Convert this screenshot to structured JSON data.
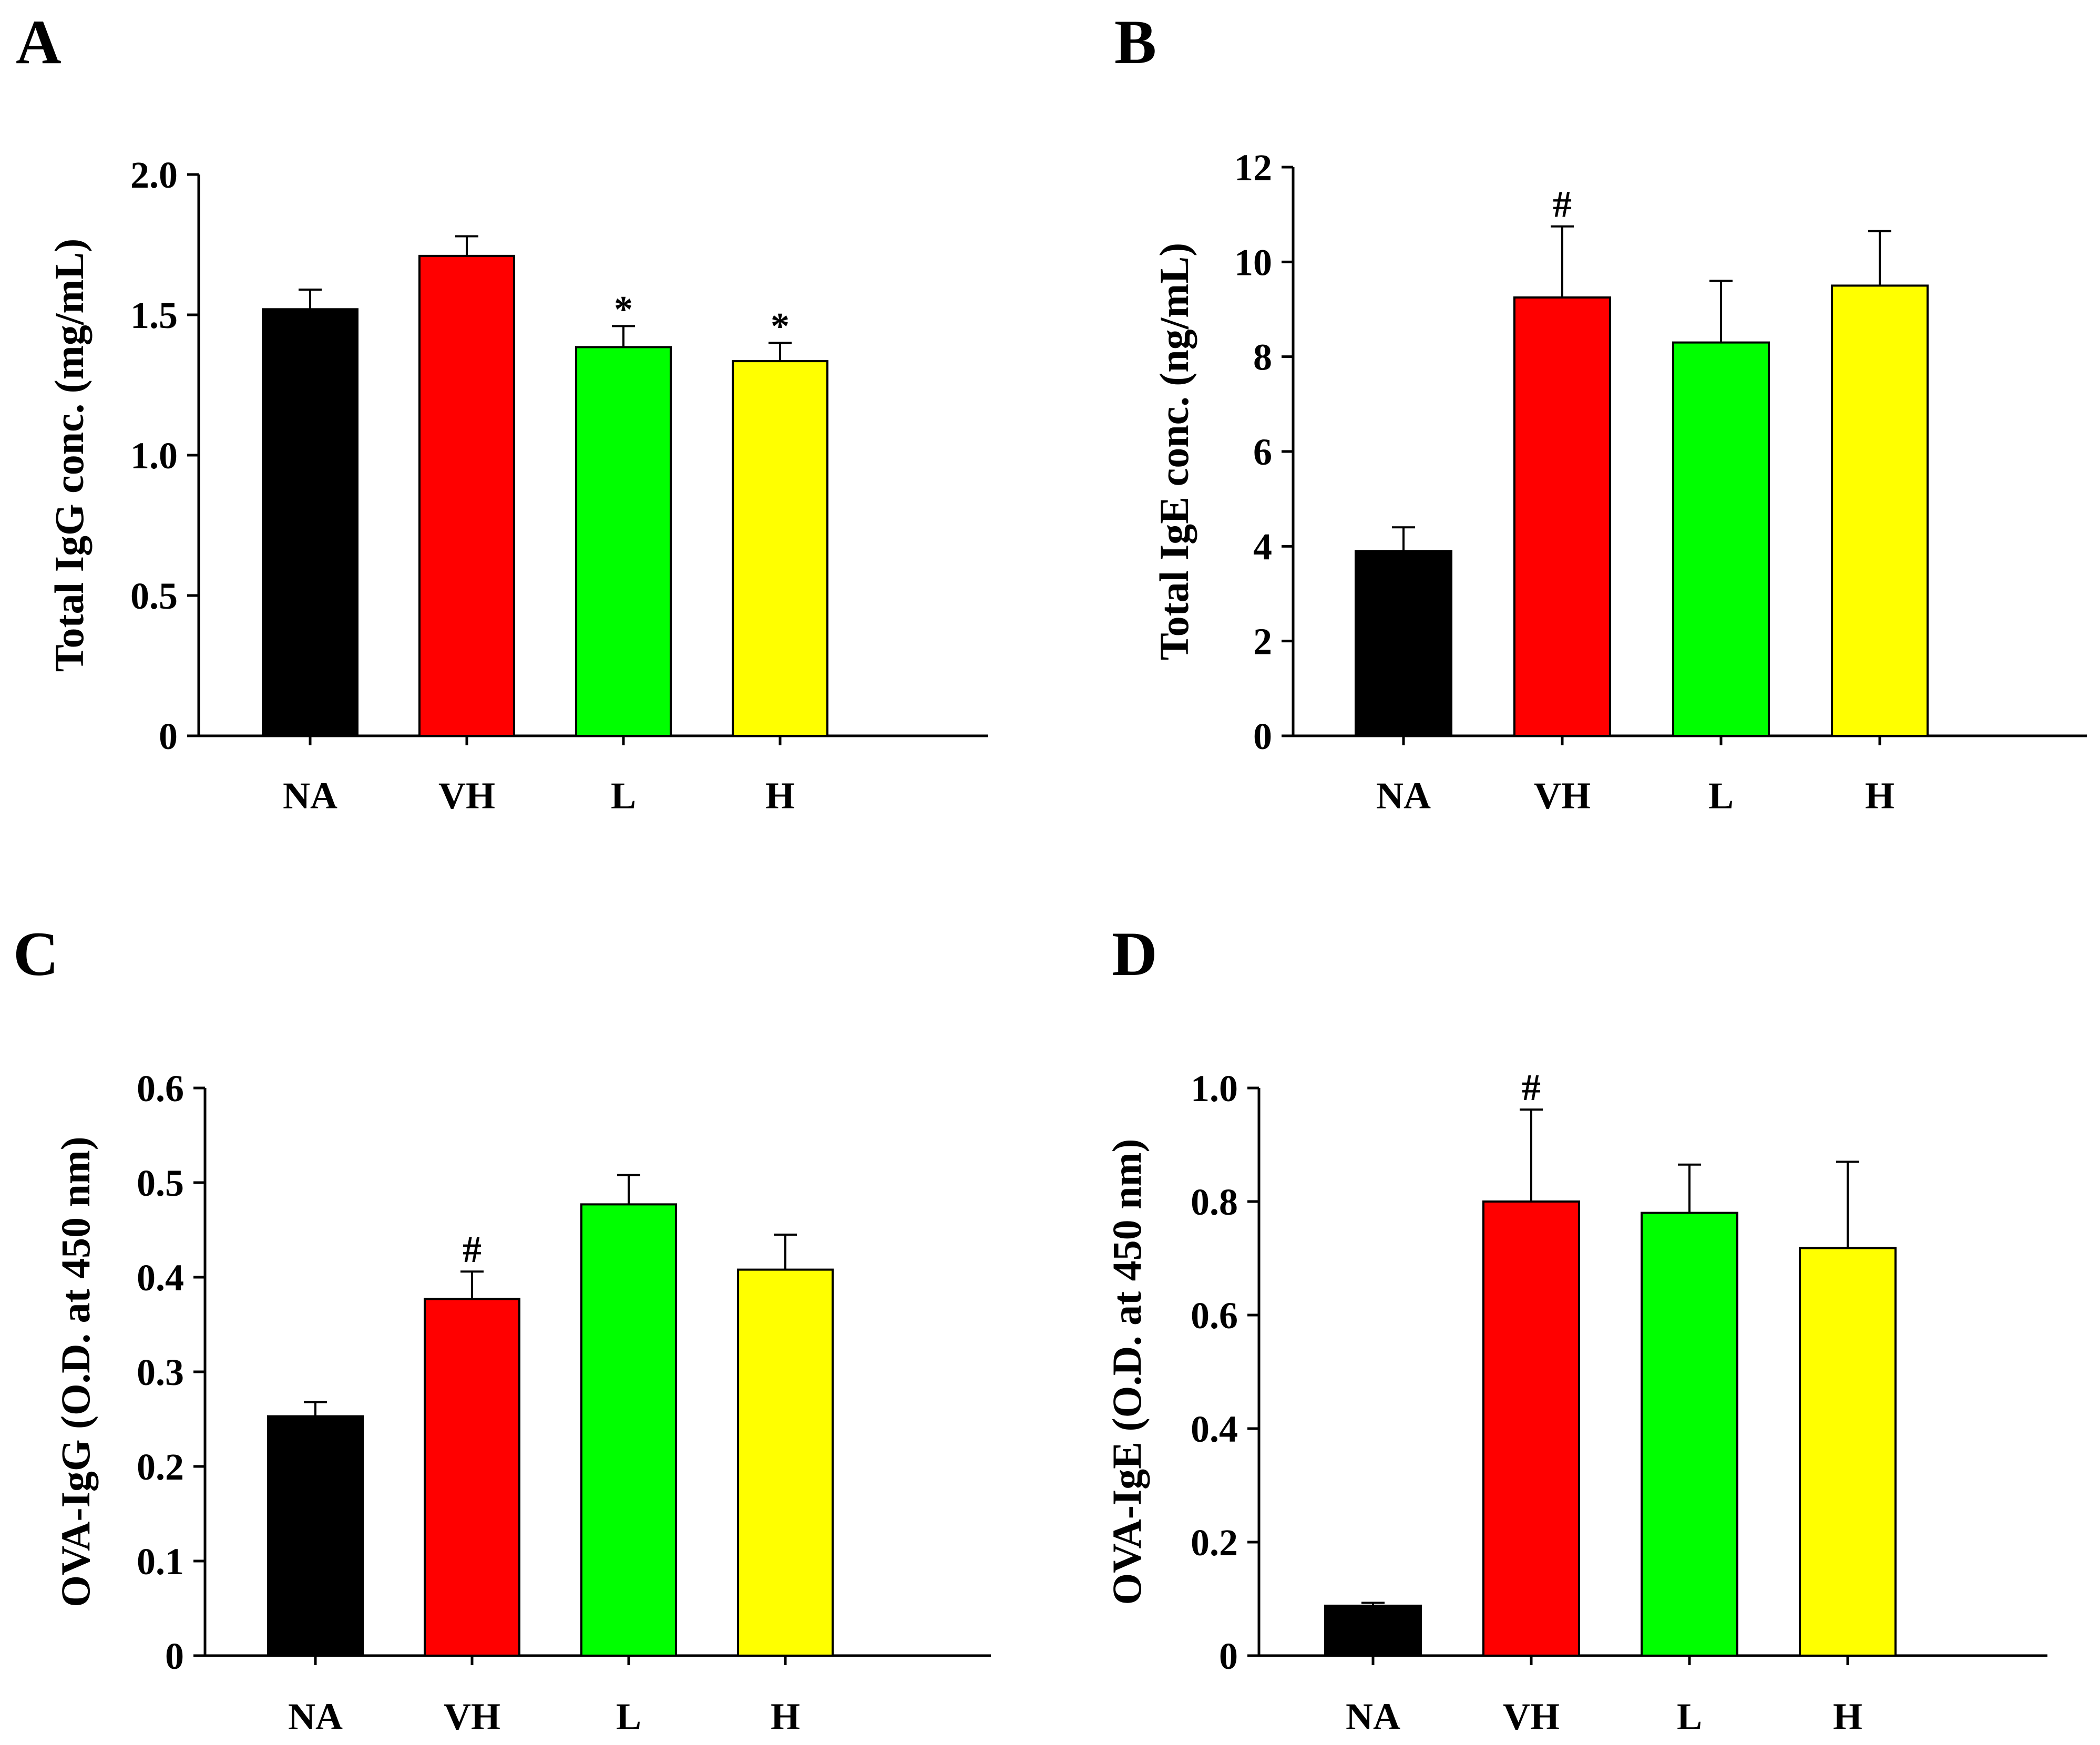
{
  "colors": {
    "NA": "#000000",
    "VH": "#ff0000",
    "L": "#00ff00",
    "H": "#ffff00"
  },
  "chart_data": [
    {
      "panel": "A",
      "type": "bar",
      "categories": [
        "NA",
        "VH",
        "L",
        "H"
      ],
      "values": [
        1.52,
        1.71,
        1.385,
        1.335
      ],
      "errors": [
        0.07,
        0.07,
        0.075,
        0.065
      ],
      "annotations": [
        "",
        "",
        "*",
        "*"
      ],
      "ylabel": "Total IgG conc. (mg/mL)",
      "ylim": [
        0,
        2.0
      ],
      "yticks": [
        0,
        0.5,
        1.0,
        1.5,
        2.0
      ],
      "ytick_labels": [
        "0",
        "0.5",
        "1.0",
        "1.5",
        "2.0"
      ]
    },
    {
      "panel": "B",
      "type": "bar",
      "categories": [
        "NA",
        "VH",
        "L",
        "H"
      ],
      "values": [
        3.9,
        9.25,
        8.3,
        9.5
      ],
      "errors": [
        0.5,
        1.5,
        1.3,
        1.15
      ],
      "annotations": [
        "",
        "#",
        "",
        ""
      ],
      "ylabel": "Total IgE conc. (ng/mL)",
      "ylim": [
        0,
        12
      ],
      "yticks": [
        0,
        2,
        4,
        6,
        8,
        10,
        12
      ],
      "ytick_labels": [
        "0",
        "2",
        "4",
        "6",
        "8",
        "10",
        "12"
      ]
    },
    {
      "panel": "C",
      "type": "bar",
      "categories": [
        "NA",
        "VH",
        "L",
        "H"
      ],
      "values": [
        0.253,
        0.377,
        0.477,
        0.408
      ],
      "errors": [
        0.015,
        0.029,
        0.031,
        0.037
      ],
      "annotations": [
        "",
        "#",
        "",
        ""
      ],
      "ylabel": "OVA-IgG (O.D. at 450 nm)",
      "ylim": [
        0,
        0.6
      ],
      "yticks": [
        0,
        0.1,
        0.2,
        0.3,
        0.4,
        0.5,
        0.6
      ],
      "ytick_labels": [
        "0",
        "0.1",
        "0.2",
        "0.3",
        "0.4",
        "0.5",
        "0.6"
      ]
    },
    {
      "panel": "D",
      "type": "bar",
      "categories": [
        "NA",
        "VH",
        "L",
        "H"
      ],
      "values": [
        0.088,
        0.8,
        0.78,
        0.718
      ],
      "errors": [
        0.005,
        0.162,
        0.085,
        0.152
      ],
      "annotations": [
        "",
        "#",
        "",
        ""
      ],
      "ylabel": "OVA-IgE (O.D. at 450 nm)",
      "ylim": [
        0,
        1.0
      ],
      "yticks": [
        0,
        0.2,
        0.4,
        0.6,
        0.8,
        1.0
      ],
      "ytick_labels": [
        "0",
        "0.2",
        "0.4",
        "0.6",
        "0.8",
        "1.0"
      ]
    }
  ]
}
